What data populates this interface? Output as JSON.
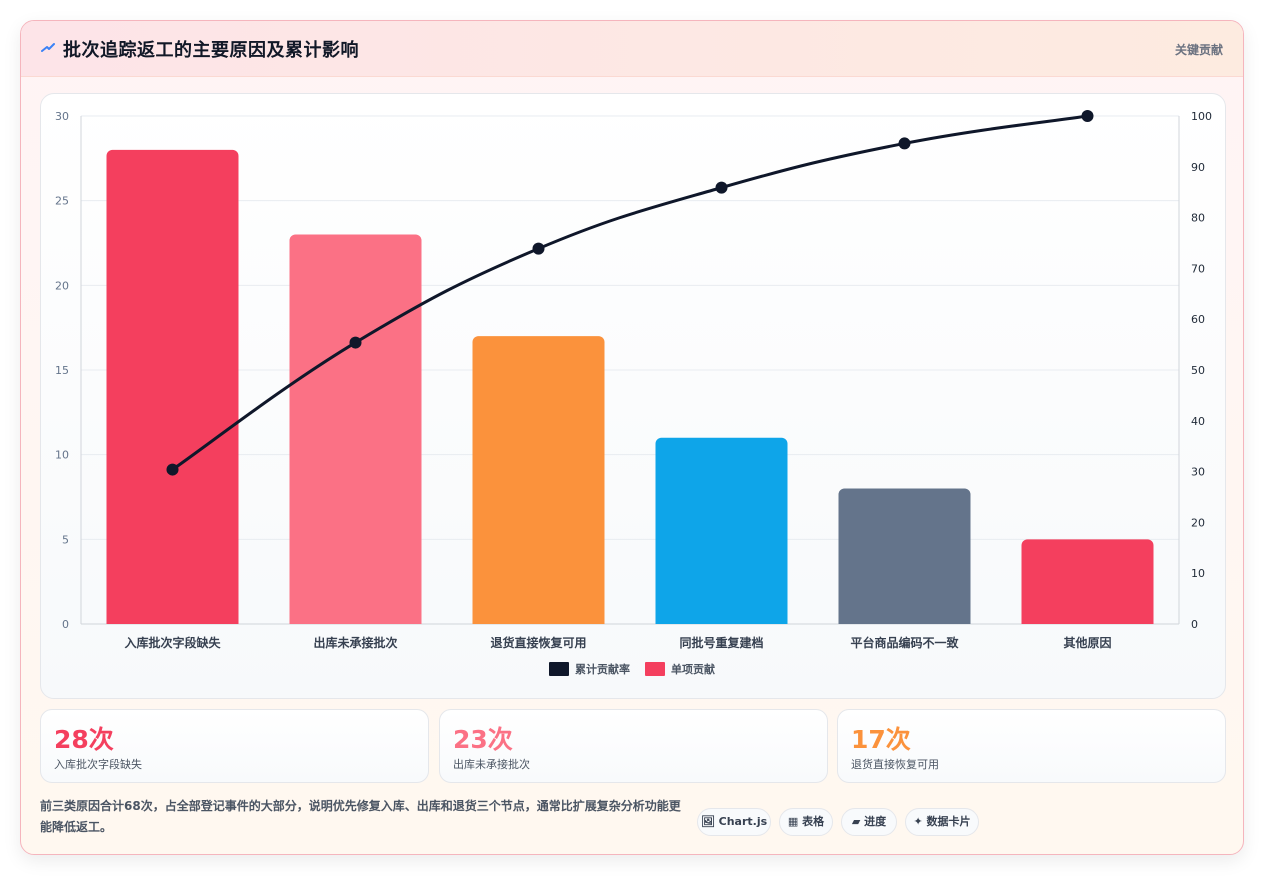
{
  "header": {
    "title": "批次追踪返工的主要原因及累计影响",
    "badge": "关键贡献",
    "icon": "trend-icon"
  },
  "chart_data": {
    "type": "bar",
    "categories": [
      "入库批次字段缺失",
      "出库未承接批次",
      "退货直接恢复可用",
      "同批号重复建档",
      "平台商品编码不一致",
      "其他原因"
    ],
    "series": [
      {
        "name": "单项贡献",
        "type": "bar",
        "axis": "left",
        "values": [
          28,
          23,
          17,
          11,
          8,
          5
        ],
        "colors": [
          "#f43f5e",
          "#fb7185",
          "#fb923c",
          "#0ea5e9",
          "#64748b",
          "#f43f5e"
        ]
      },
      {
        "name": "累计贡献率",
        "type": "line",
        "axis": "right",
        "values": [
          30.4,
          55.4,
          73.9,
          85.9,
          94.6,
          100
        ],
        "color": "#0f172a"
      }
    ],
    "ylim": [
      0,
      30
    ],
    "yticks": [
      0,
      5,
      10,
      15,
      20,
      25,
      30
    ],
    "y2lim": [
      0,
      100
    ],
    "y2ticks": [
      0,
      10,
      20,
      30,
      40,
      50,
      60,
      70,
      80,
      90,
      100
    ],
    "legend": [
      {
        "label": "累计贡献率",
        "color": "#0f172a"
      },
      {
        "label": "单项贡献",
        "color": "#f43f5e"
      }
    ],
    "legend_position": "bottom",
    "grid": true
  },
  "stats": [
    {
      "value": "28次",
      "label": "入库批次字段缺失",
      "color": "#f43f5e"
    },
    {
      "value": "23次",
      "label": "出库未承接批次",
      "color": "#fb7185"
    },
    {
      "value": "17次",
      "label": "退货直接恢复可用",
      "color": "#fb923c"
    }
  ],
  "note": "前三类原因合计68次，占全部登记事件的大部分，说明优先修复入库、出库和退货三个节点，通常比扩展复杂分析功能更能降低返工。",
  "chips": [
    {
      "label": "🖼 Chart.js",
      "icon": "image-icon"
    },
    {
      "label": "▦ 表格",
      "icon": "table-icon"
    },
    {
      "label": "▰ 进度",
      "icon": "progress-icon"
    },
    {
      "label": "✦ 数据卡片",
      "icon": "sparkle-icon"
    }
  ]
}
